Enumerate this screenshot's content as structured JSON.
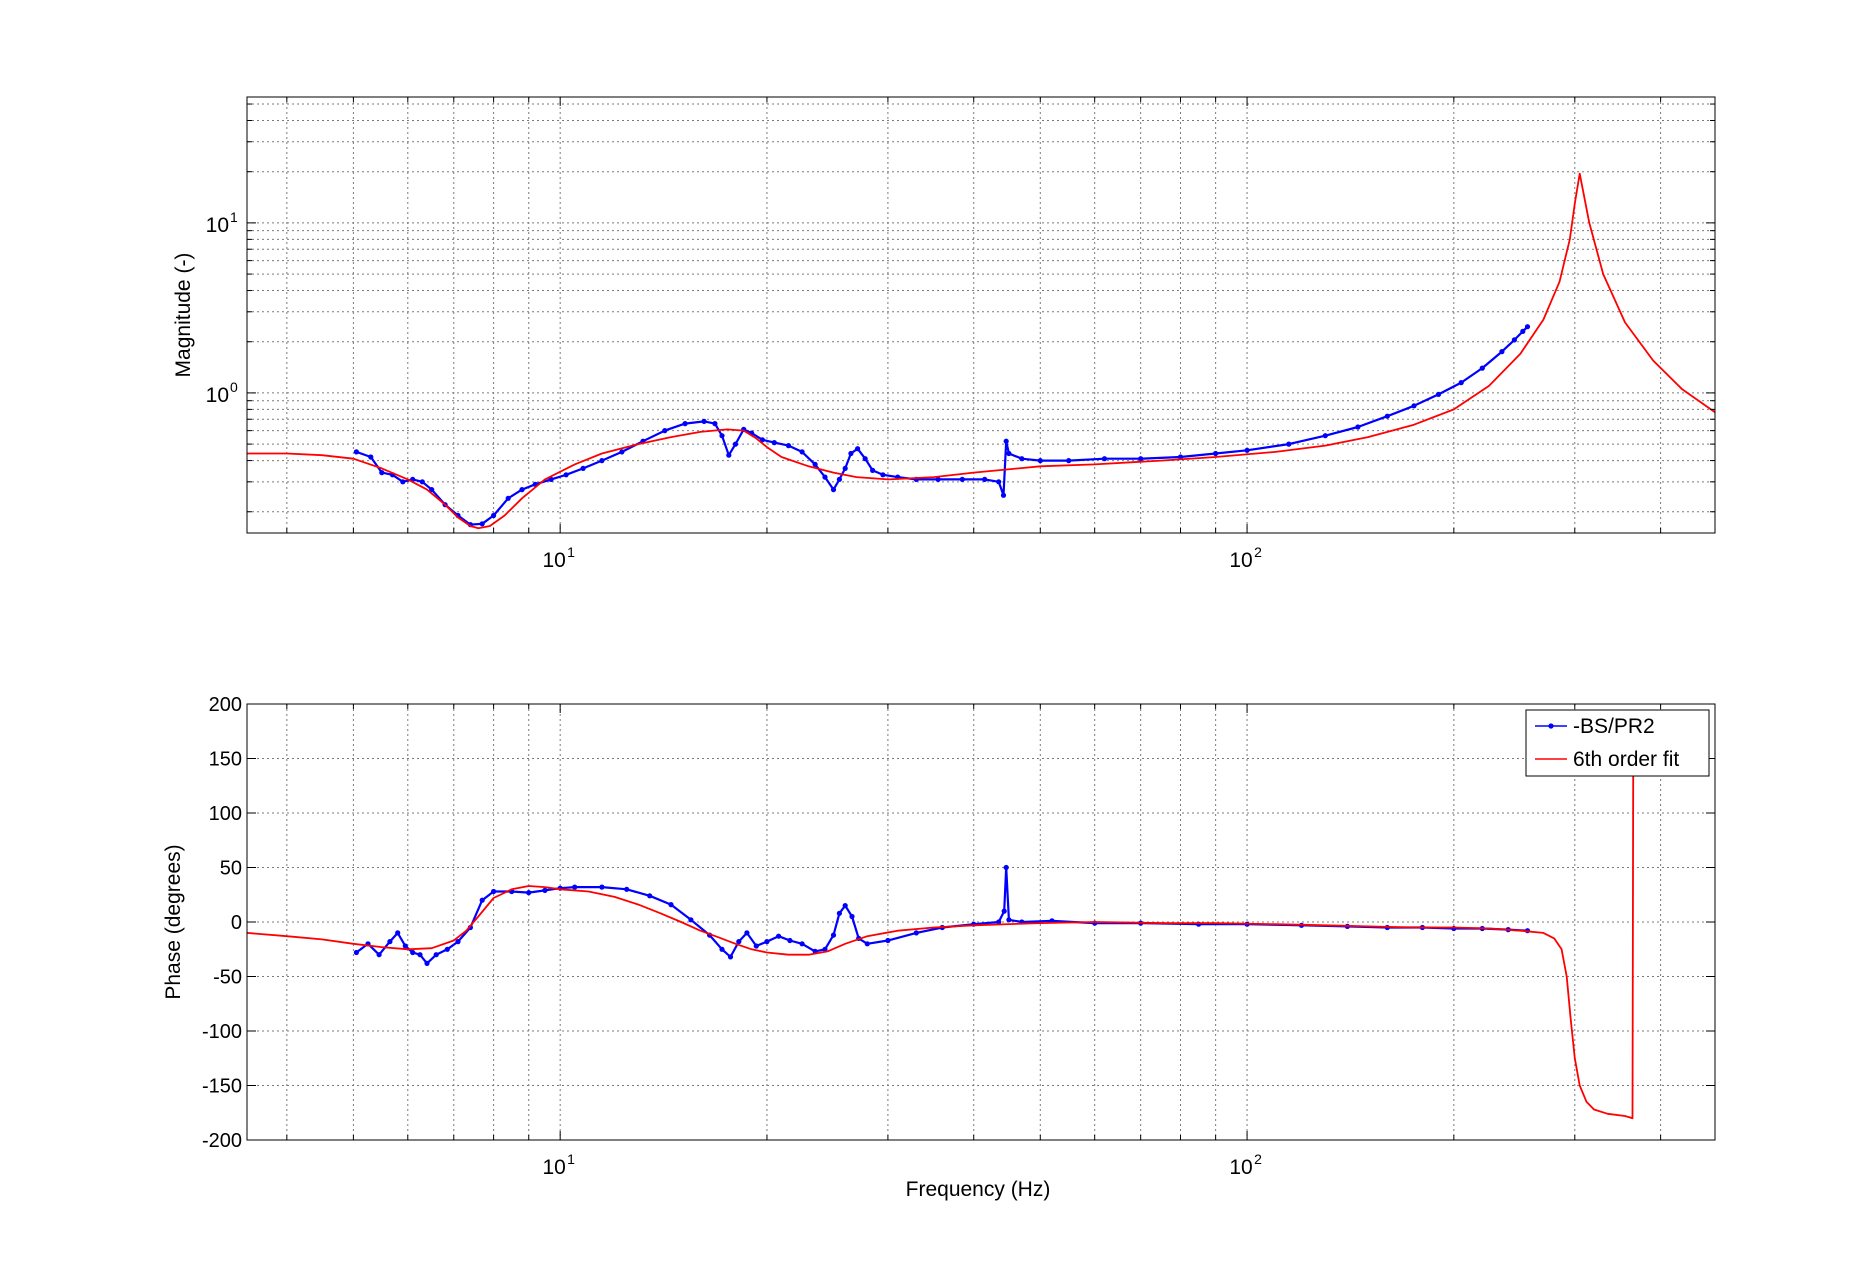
{
  "chart_data": [
    {
      "type": "line",
      "xscale": "log",
      "yscale": "log",
      "xlim": [
        3.5,
        480
      ],
      "ylim": [
        0.15,
        55
      ],
      "xticks": [
        {
          "value": 10,
          "label": "10",
          "exp": "1"
        },
        {
          "value": 100,
          "label": "10",
          "exp": "2"
        }
      ],
      "yticks": [
        {
          "value": 1,
          "label": "10",
          "exp": "0"
        },
        {
          "value": 10,
          "label": "10",
          "exp": "1"
        }
      ],
      "xlabel": "",
      "ylabel": "Magnitude (-)",
      "grid": true,
      "series": [
        {
          "name": "-BS/PR2",
          "color": "#0000ff",
          "marker": "dot",
          "x": [
            5.05,
            5.3,
            5.5,
            5.7,
            5.9,
            6.1,
            6.3,
            6.5,
            6.8,
            7.1,
            7.4,
            7.7,
            8.0,
            8.4,
            8.8,
            9.2,
            9.7,
            10.2,
            10.8,
            11.5,
            12.3,
            13.2,
            14.2,
            15.2,
            16.2,
            16.8,
            17.2,
            17.6,
            18.0,
            18.5,
            19.0,
            19.7,
            20.5,
            21.5,
            22.5,
            23.5,
            24.3,
            25.0,
            25.5,
            26.0,
            26.5,
            27.1,
            27.8,
            28.5,
            29.5,
            31.0,
            33.0,
            35.5,
            38.5,
            41.5,
            43.5,
            44.2,
            44.6,
            45.0,
            47.0,
            50.0,
            55.0,
            62.0,
            70.0,
            80.0,
            90.0,
            100.0,
            115.0,
            130.0,
            145.0,
            160.0,
            175.0,
            190.0,
            205.0,
            220.0,
            235.0,
            245.0,
            252.0,
            256.0
          ],
          "y": [
            0.45,
            0.42,
            0.34,
            0.33,
            0.3,
            0.31,
            0.3,
            0.27,
            0.22,
            0.19,
            0.168,
            0.17,
            0.19,
            0.24,
            0.27,
            0.29,
            0.31,
            0.33,
            0.36,
            0.4,
            0.45,
            0.52,
            0.6,
            0.66,
            0.68,
            0.66,
            0.56,
            0.43,
            0.5,
            0.61,
            0.58,
            0.53,
            0.51,
            0.49,
            0.45,
            0.38,
            0.32,
            0.27,
            0.31,
            0.36,
            0.44,
            0.47,
            0.41,
            0.35,
            0.33,
            0.32,
            0.31,
            0.31,
            0.31,
            0.31,
            0.3,
            0.25,
            0.52,
            0.44,
            0.41,
            0.4,
            0.4,
            0.41,
            0.41,
            0.42,
            0.44,
            0.46,
            0.5,
            0.56,
            0.63,
            0.73,
            0.84,
            0.98,
            1.15,
            1.4,
            1.75,
            2.05,
            2.3,
            2.45
          ]
        },
        {
          "name": "6th order fit",
          "color": "#ff0000",
          "marker": "none",
          "x": [
            3.5,
            4.0,
            4.5,
            5.0,
            5.5,
            6.0,
            6.4,
            6.8,
            7.1,
            7.4,
            7.6,
            7.9,
            8.3,
            8.8,
            9.5,
            10.5,
            11.5,
            13.0,
            14.5,
            16.0,
            17.5,
            18.5,
            19.3,
            20.0,
            21.0,
            23.0,
            25.0,
            27.0,
            30.0,
            35.0,
            40.0,
            50.0,
            60.0,
            75.0,
            90.0,
            110.0,
            130.0,
            150.0,
            175.0,
            200.0,
            225.0,
            250.0,
            270.0,
            285.0,
            295.0,
            300.0,
            305.0,
            315.0,
            330.0,
            355.0,
            390.0,
            430.0,
            480.0
          ],
          "y": [
            0.44,
            0.44,
            0.43,
            0.41,
            0.36,
            0.31,
            0.27,
            0.22,
            0.185,
            0.165,
            0.16,
            0.165,
            0.19,
            0.24,
            0.31,
            0.38,
            0.44,
            0.5,
            0.55,
            0.59,
            0.61,
            0.6,
            0.54,
            0.48,
            0.42,
            0.37,
            0.34,
            0.32,
            0.31,
            0.32,
            0.34,
            0.37,
            0.38,
            0.4,
            0.42,
            0.45,
            0.49,
            0.55,
            0.65,
            0.8,
            1.1,
            1.7,
            2.7,
            4.5,
            8.0,
            13.0,
            19.5,
            10.0,
            5.0,
            2.6,
            1.55,
            1.05,
            0.77
          ]
        }
      ]
    },
    {
      "type": "line",
      "xscale": "log",
      "yscale": "linear",
      "xlim": [
        3.5,
        480
      ],
      "ylim": [
        -200,
        200
      ],
      "xticks": [
        {
          "value": 10,
          "label": "10",
          "exp": "1"
        },
        {
          "value": 100,
          "label": "10",
          "exp": "2"
        }
      ],
      "yticks": [
        -200,
        -150,
        -100,
        -50,
        0,
        50,
        100,
        150,
        200
      ],
      "xlabel": "Frequency (Hz)",
      "ylabel": "Phase (degrees)",
      "grid": true,
      "legend": {
        "position": "top-right",
        "entries": [
          "-BS/PR2",
          "6th order fit"
        ]
      },
      "series": [
        {
          "name": "-BS/PR2",
          "color": "#0000ff",
          "marker": "dot",
          "x": [
            5.05,
            5.25,
            5.45,
            5.65,
            5.8,
            5.95,
            6.1,
            6.25,
            6.4,
            6.6,
            6.85,
            7.1,
            7.4,
            7.7,
            8.0,
            8.5,
            9.0,
            9.5,
            10.0,
            10.5,
            11.5,
            12.5,
            13.5,
            14.5,
            15.5,
            16.5,
            17.2,
            17.7,
            18.2,
            18.7,
            19.3,
            20.0,
            20.8,
            21.6,
            22.5,
            23.5,
            24.3,
            25.0,
            25.5,
            26.0,
            26.6,
            27.2,
            28.0,
            30.0,
            33.0,
            36.0,
            40.0,
            43.5,
            44.3,
            44.6,
            45.0,
            47.0,
            52.0,
            60.0,
            70.0,
            85.0,
            100.0,
            120.0,
            140.0,
            160.0,
            180.0,
            200.0,
            220.0,
            240.0,
            256.0
          ],
          "y": [
            -28,
            -20,
            -30,
            -18,
            -10,
            -22,
            -28,
            -30,
            -38,
            -30,
            -25,
            -18,
            -5,
            20,
            28,
            28,
            27,
            29,
            31,
            32,
            32,
            30,
            24,
            16,
            2,
            -12,
            -25,
            -32,
            -18,
            -10,
            -22,
            -18,
            -13,
            -17,
            -20,
            -27,
            -25,
            -12,
            8,
            15,
            5,
            -15,
            -20,
            -17,
            -10,
            -5,
            -2,
            0,
            10,
            50,
            2,
            0,
            1,
            -1,
            -1,
            -2,
            -2,
            -3,
            -4,
            -5,
            -5,
            -6,
            -6,
            -7,
            -8
          ]
        },
        {
          "name": "6th order fit",
          "color": "#ff0000",
          "marker": "none",
          "x": [
            3.5,
            4.0,
            4.5,
            5.0,
            5.5,
            6.0,
            6.5,
            7.0,
            7.3,
            7.6,
            8.0,
            8.5,
            9.0,
            9.5,
            10.0,
            11.0,
            12.0,
            13.0,
            14.0,
            15.0,
            16.0,
            17.0,
            18.0,
            19.0,
            20.0,
            21.5,
            23.0,
            24.5,
            26.0,
            28.0,
            31.0,
            35.0,
            40.0,
            50.0,
            60.0,
            75.0,
            90.0,
            110.0,
            130.0,
            150.0,
            175.0,
            200.0,
            225.0,
            250.0,
            270.0,
            280.0,
            287.0,
            292.0,
            296.0,
            300.0,
            305.0,
            312.0,
            320.0,
            335.0,
            355.0,
            364.0,
            364.5,
            365.0,
            371.0
          ],
          "y": [
            -10,
            -13,
            -16,
            -20,
            -23,
            -25,
            -24,
            -17,
            -8,
            5,
            22,
            30,
            33,
            32,
            30,
            28,
            23,
            16,
            8,
            0,
            -8,
            -14,
            -20,
            -25,
            -28,
            -30,
            -30,
            -27,
            -20,
            -13,
            -8,
            -5,
            -3,
            -1,
            0,
            -1,
            -1,
            -2,
            -3,
            -4,
            -5,
            -5,
            -6,
            -8,
            -10,
            -15,
            -25,
            -50,
            -90,
            -125,
            -150,
            -165,
            -172,
            -176,
            -178,
            -180,
            0,
            175,
            178
          ]
        }
      ]
    }
  ]
}
